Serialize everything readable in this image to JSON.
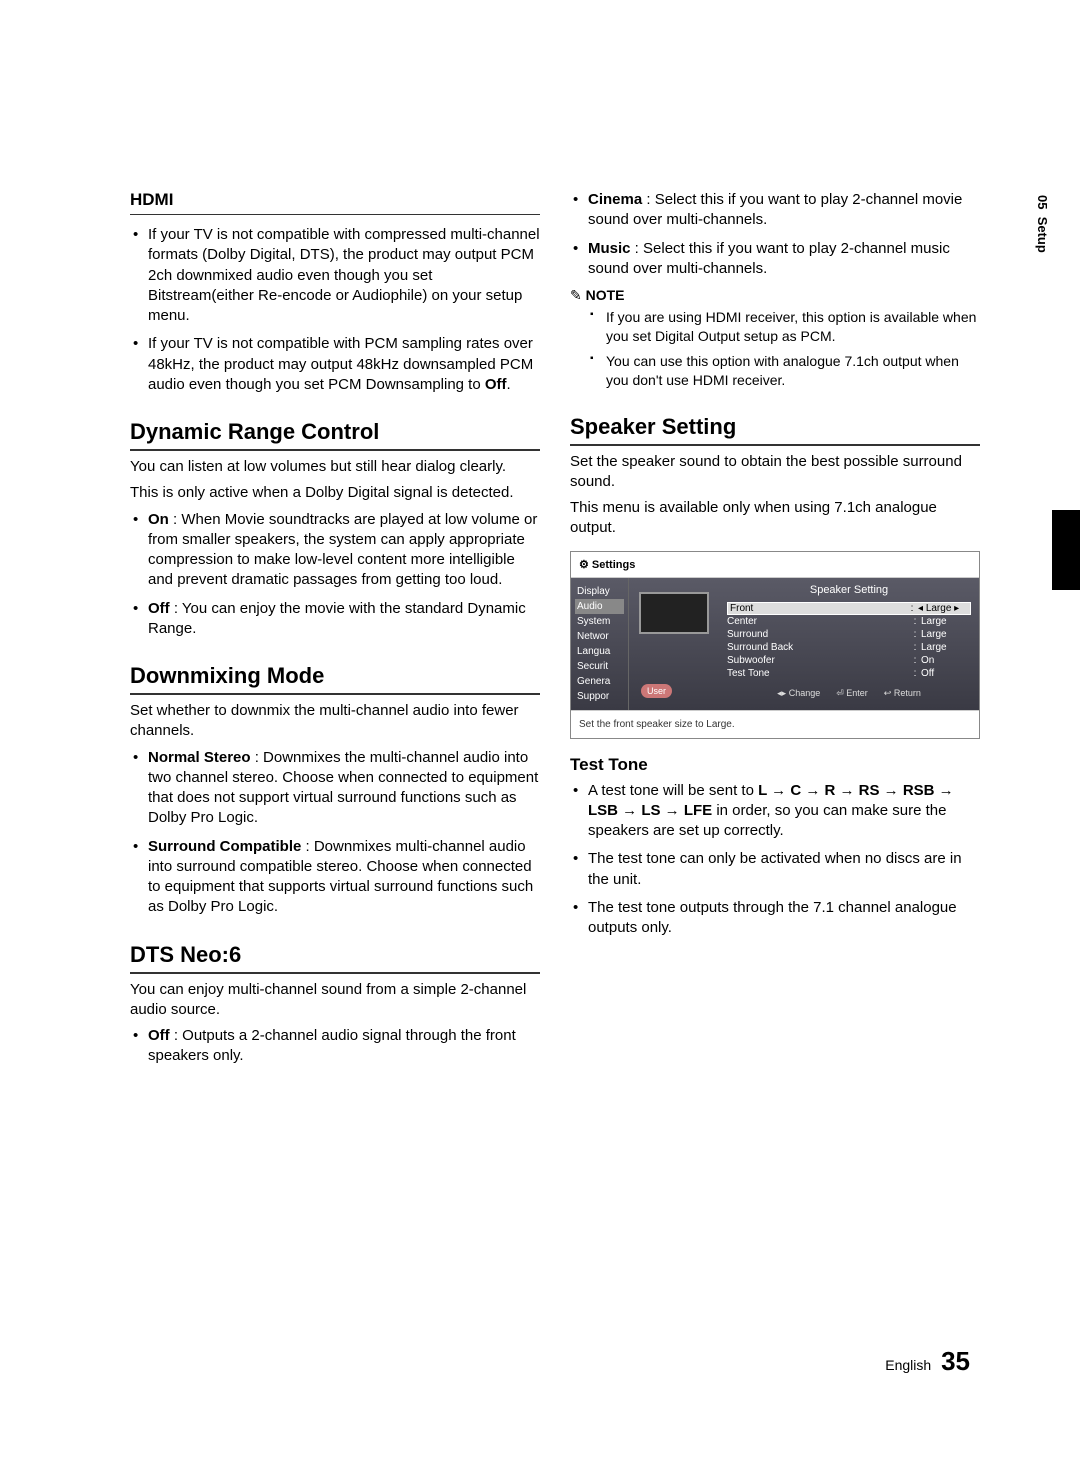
{
  "tab": {
    "chapter": "05",
    "title": "Setup"
  },
  "footer": {
    "lang": "English",
    "page": "35"
  },
  "left": {
    "hdmi": {
      "heading": "HDMI",
      "b1": "If your TV is not compatible with compressed multi-channel formats (Dolby Digital, DTS), the product may output PCM 2ch downmixed audio even though you set Bitstream(either Re-encode or Audiophile) on your setup menu.",
      "b2_a": "If your TV is not compatible with PCM sampling rates over 48kHz, the product may output 48kHz downsampled PCM audio even though you set PCM Downsampling to ",
      "b2_b": "Off",
      "b2_c": "."
    },
    "drc": {
      "heading": "Dynamic Range Control",
      "p1": "You can listen at low volumes but still hear dialog clearly.",
      "p2": "This is only active when a Dolby Digital signal is detected.",
      "on_label": "On",
      "on_text": " : When Movie soundtracks are played at low volume or from smaller speakers, the system can apply appropriate compression to make low-level content more intelligible and prevent dramatic passages from getting too loud.",
      "off_label": "Off",
      "off_text": " : You can enjoy the movie with the standard Dynamic Range."
    },
    "downmix": {
      "heading": "Downmixing Mode",
      "p1": "Set whether to downmix the multi-channel audio into fewer channels.",
      "ns_label": "Normal Stereo",
      "ns_text": " : Downmixes the multi-channel audio into two channel stereo. Choose when connected to equipment that does not support virtual surround functions such as Dolby Pro Logic.",
      "sc_label": "Surround Compatible",
      "sc_text": " : Downmixes multi-channel audio into surround compatible stereo. Choose when connected to equipment that supports virtual surround functions such as Dolby Pro Logic."
    },
    "dts": {
      "heading": "DTS Neo:6",
      "p1": "You can enjoy multi-channel sound from a simple 2-channel audio source.",
      "off_label": "Off",
      "off_text": " : Outputs a 2-channel audio signal through the front speakers only."
    }
  },
  "right": {
    "dts_cont": {
      "cinema_label": "Cinema",
      "cinema_text": " : Select this if you want to play 2-channel movie sound over multi-channels.",
      "music_label": "Music",
      "music_text": " : Select this if you want to play 2-channel music sound over multi-channels."
    },
    "note": {
      "label": "NOTE",
      "n1": "If you are using HDMI receiver, this option is available when you set Digital Output setup as PCM.",
      "n2": "You can use this option with analogue 7.1ch output when you don't use HDMI receiver."
    },
    "speaker": {
      "heading": "Speaker Setting",
      "p1": "Set the speaker sound to obtain the best possible surround sound.",
      "p2": "This menu is available only when using 7.1ch analogue output."
    },
    "settings_ui": {
      "title": "Settings",
      "sidebar": [
        "Display",
        "Audio",
        "System",
        "Networ",
        "Langua",
        "Securit",
        "Genera",
        "Suppor"
      ],
      "active_index": 1,
      "panel_title": "Speaker Setting",
      "user_badge": "User",
      "rows": [
        {
          "label": "Front",
          "value": "Large",
          "selected": true
        },
        {
          "label": "Center",
          "value": "Large",
          "selected": false
        },
        {
          "label": "Surround",
          "value": "Large",
          "selected": false
        },
        {
          "label": "Surround Back",
          "value": "Large",
          "selected": false
        },
        {
          "label": "Subwoofer",
          "value": "On",
          "selected": false
        },
        {
          "label": "Test Tone",
          "value": "Off",
          "selected": false
        }
      ],
      "nav": {
        "change": "◂▸ Change",
        "enter": "⏎ Enter",
        "return": "↩ Return"
      },
      "footer": "Set the front speaker size to Large."
    },
    "testtone": {
      "heading": "Test Tone",
      "b1_a": "A test tone will be sent to ",
      "seq": "L → C → R → RS → RSB → LSB → LS → LFE",
      "b1_b": " in order, so you can make sure the speakers are set up correctly.",
      "b2": "The test tone can only be activated when no discs are in the unit.",
      "b3": "The test tone outputs through the 7.1 channel analogue outputs only."
    }
  }
}
